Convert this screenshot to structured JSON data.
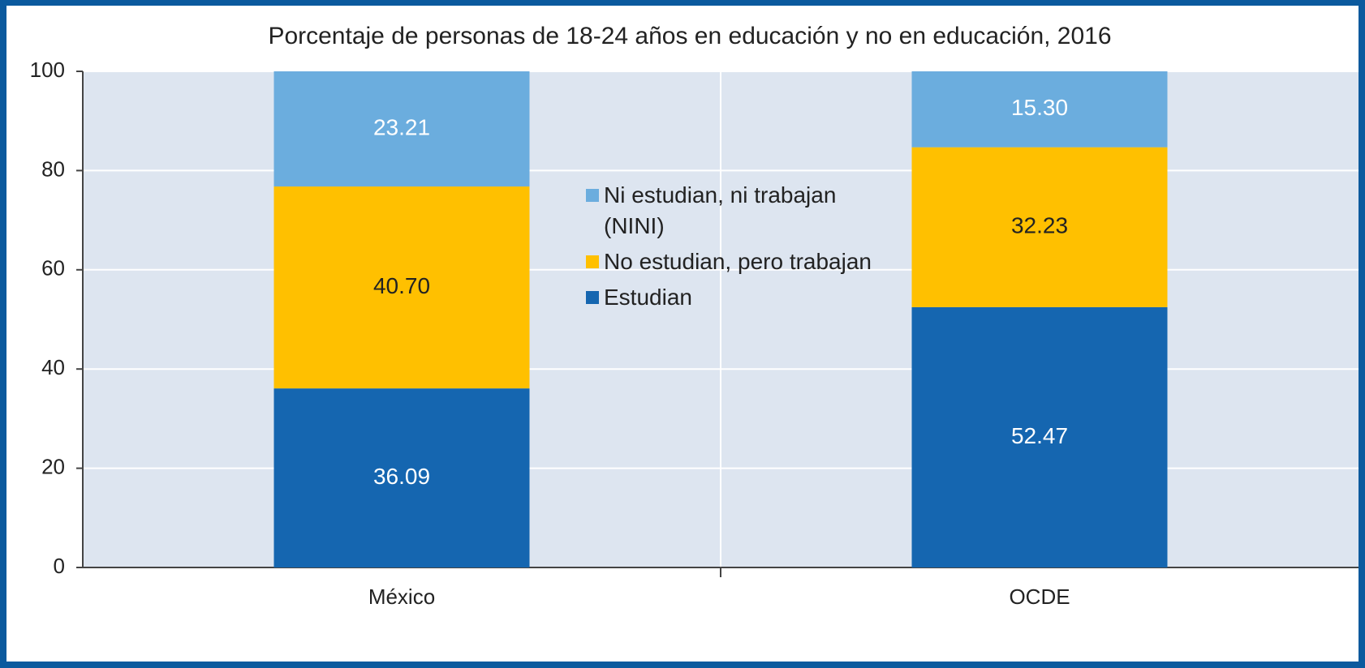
{
  "chart_data": {
    "type": "stacked_bar",
    "title": "Porcentaje de personas de 18-24 años en educación y no en educación, 2016",
    "categories": [
      "México",
      "OCDE"
    ],
    "series": [
      {
        "name": "Estudian",
        "color": "#1566b0",
        "values": [
          36.09,
          52.47
        ],
        "value_labels": [
          "36.09",
          "52.47"
        ]
      },
      {
        "name": "No estudian, pero trabajan",
        "color": "#ffc000",
        "values": [
          40.7,
          32.23
        ],
        "value_labels": [
          "40.70",
          "32.23"
        ]
      },
      {
        "name": "Ni estudian, ni trabajan (NINI)",
        "color": "#6badde",
        "values": [
          23.21,
          15.3
        ],
        "value_labels": [
          "23.21",
          "15.30"
        ]
      }
    ],
    "ylim": [
      0,
      100
    ],
    "yticks": [
      0,
      20,
      40,
      60,
      80,
      100
    ],
    "grid": true
  }
}
